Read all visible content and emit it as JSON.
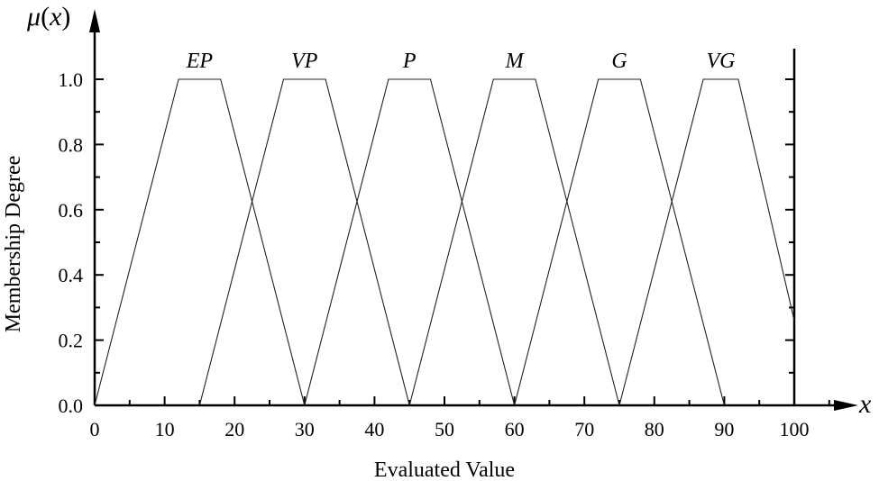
{
  "chart_data": {
    "type": "line",
    "title": "",
    "xlabel": "Evaluated Value",
    "ylabel": "Membership Degree",
    "x_axis_symbol": "x",
    "y_axis_symbol": "μ(x)",
    "xlim": [
      0,
      100
    ],
    "ylim": [
      0,
      1.0
    ],
    "x_ticks": [
      0,
      10,
      20,
      30,
      40,
      50,
      60,
      70,
      80,
      90,
      100
    ],
    "y_ticks": [
      0.0,
      0.2,
      0.4,
      0.6,
      0.8,
      1.0
    ],
    "x_tick_labels": [
      "0",
      "10",
      "20",
      "30",
      "40",
      "50",
      "60",
      "70",
      "80",
      "90",
      "100"
    ],
    "y_tick_labels": [
      "0.0",
      "0.2",
      "0.4",
      "0.6",
      "0.8",
      "1.0"
    ],
    "grid": false,
    "legend": "inline labels above each trapezoid",
    "series": [
      {
        "name": "EP",
        "x": [
          0,
          12,
          18,
          30
        ],
        "y": [
          0,
          1,
          1,
          0
        ]
      },
      {
        "name": "VP",
        "x": [
          15,
          27,
          33,
          45
        ],
        "y": [
          0,
          1,
          1,
          0
        ]
      },
      {
        "name": "P",
        "x": [
          30,
          42,
          48,
          60
        ],
        "y": [
          0,
          1,
          1,
          0
        ]
      },
      {
        "name": "M",
        "x": [
          45,
          57,
          63,
          75
        ],
        "y": [
          0,
          1,
          1,
          0
        ]
      },
      {
        "name": "G",
        "x": [
          60,
          72,
          78,
          90
        ],
        "y": [
          0,
          1,
          1,
          0
        ]
      },
      {
        "name": "VG",
        "x": [
          75,
          87,
          92,
          100
        ],
        "y": [
          0,
          1,
          1,
          0.26
        ]
      }
    ]
  },
  "labels": {
    "xlabel": "Evaluated Value",
    "ylabel": "Membership Degree",
    "x_symbol": "x",
    "y_symbol_mu": "μ",
    "y_symbol_paren": "(x)"
  }
}
